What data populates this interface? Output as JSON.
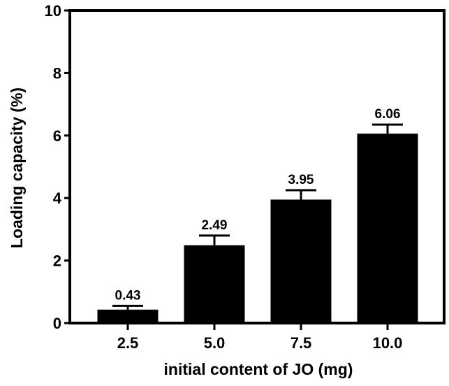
{
  "chart_data": {
    "type": "bar",
    "title": "",
    "xlabel": "initial content of JO (mg)",
    "ylabel": "Loading capacity (%)",
    "categories": [
      "2.5",
      "5.0",
      "7.5",
      "10.0"
    ],
    "values": [
      0.43,
      2.49,
      3.95,
      6.06
    ],
    "error_upper": [
      0.12,
      0.31,
      0.3,
      0.29
    ],
    "value_labels": [
      "0.43",
      "2.49",
      "3.95",
      "6.06"
    ],
    "ylim": [
      0,
      10
    ],
    "yticks": [
      0,
      2,
      4,
      6,
      8,
      10
    ],
    "grid": false,
    "legend": null,
    "bar_color": "#000000",
    "frame": "box"
  }
}
